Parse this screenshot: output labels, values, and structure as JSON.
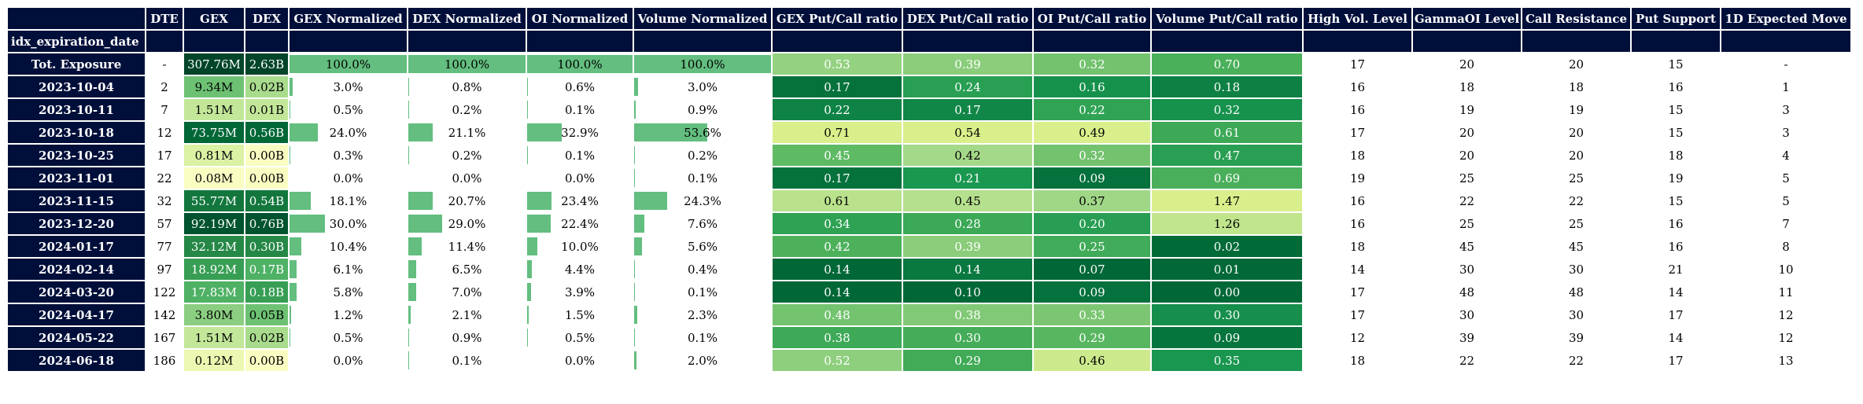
{
  "index_name": "idx_expiration_date",
  "columns": [
    "DTE",
    "GEX",
    "DEX",
    "GEX Normalized",
    "DEX Normalized",
    "OI Normalized",
    "Volume Normalized",
    "GEX Put/Call ratio",
    "DEX Put/Call ratio",
    "OI Put/Call ratio",
    "Volume Put/Call ratio",
    "High Vol. Level",
    "GammaOI Level",
    "Call Resistance",
    "Put Support",
    "1D Expected Move"
  ],
  "rows": [
    {
      "label": "Tot. Exposure",
      "dte": "-",
      "gex": "307.76M",
      "dex": "2.63B",
      "gex_n": "100.0%",
      "dex_n": "100.0%",
      "oi_n": "100.0%",
      "vol_n": "100.0%",
      "gex_pc": "0.53",
      "dex_pc": "0.39",
      "oi_pc": "0.32",
      "vol_pc": "0.70",
      "hvl": "17",
      "goi": "20",
      "cr": "20",
      "ps": "15",
      "em": "-"
    },
    {
      "label": "2023-10-04",
      "dte": "2",
      "gex": "9.34M",
      "dex": "0.02B",
      "gex_n": "3.0%",
      "dex_n": "0.8%",
      "oi_n": "0.6%",
      "vol_n": "3.0%",
      "gex_pc": "0.17",
      "dex_pc": "0.24",
      "oi_pc": "0.16",
      "vol_pc": "0.18",
      "hvl": "16",
      "goi": "18",
      "cr": "18",
      "ps": "16",
      "em": "1"
    },
    {
      "label": "2023-10-11",
      "dte": "7",
      "gex": "1.51M",
      "dex": "0.01B",
      "gex_n": "0.5%",
      "dex_n": "0.2%",
      "oi_n": "0.1%",
      "vol_n": "0.9%",
      "gex_pc": "0.22",
      "dex_pc": "0.17",
      "oi_pc": "0.22",
      "vol_pc": "0.32",
      "hvl": "16",
      "goi": "19",
      "cr": "19",
      "ps": "15",
      "em": "3"
    },
    {
      "label": "2023-10-18",
      "dte": "12",
      "gex": "73.75M",
      "dex": "0.56B",
      "gex_n": "24.0%",
      "dex_n": "21.1%",
      "oi_n": "32.9%",
      "vol_n": "53.6%",
      "gex_pc": "0.71",
      "dex_pc": "0.54",
      "oi_pc": "0.49",
      "vol_pc": "0.61",
      "hvl": "17",
      "goi": "20",
      "cr": "20",
      "ps": "15",
      "em": "3"
    },
    {
      "label": "2023-10-25",
      "dte": "17",
      "gex": "0.81M",
      "dex": "0.00B",
      "gex_n": "0.3%",
      "dex_n": "0.2%",
      "oi_n": "0.1%",
      "vol_n": "0.2%",
      "gex_pc": "0.45",
      "dex_pc": "0.42",
      "oi_pc": "0.32",
      "vol_pc": "0.47",
      "hvl": "18",
      "goi": "20",
      "cr": "20",
      "ps": "18",
      "em": "4"
    },
    {
      "label": "2023-11-01",
      "dte": "22",
      "gex": "0.08M",
      "dex": "0.00B",
      "gex_n": "0.0%",
      "dex_n": "0.0%",
      "oi_n": "0.0%",
      "vol_n": "0.1%",
      "gex_pc": "0.17",
      "dex_pc": "0.21",
      "oi_pc": "0.09",
      "vol_pc": "0.69",
      "hvl": "19",
      "goi": "25",
      "cr": "25",
      "ps": "19",
      "em": "5"
    },
    {
      "label": "2023-11-15",
      "dte": "32",
      "gex": "55.77M",
      "dex": "0.54B",
      "gex_n": "18.1%",
      "dex_n": "20.7%",
      "oi_n": "23.4%",
      "vol_n": "24.3%",
      "gex_pc": "0.61",
      "dex_pc": "0.45",
      "oi_pc": "0.37",
      "vol_pc": "1.47",
      "hvl": "16",
      "goi": "22",
      "cr": "22",
      "ps": "15",
      "em": "5"
    },
    {
      "label": "2023-12-20",
      "dte": "57",
      "gex": "92.19M",
      "dex": "0.76B",
      "gex_n": "30.0%",
      "dex_n": "29.0%",
      "oi_n": "22.4%",
      "vol_n": "7.6%",
      "gex_pc": "0.34",
      "dex_pc": "0.28",
      "oi_pc": "0.20",
      "vol_pc": "1.26",
      "hvl": "16",
      "goi": "25",
      "cr": "25",
      "ps": "16",
      "em": "7"
    },
    {
      "label": "2024-01-17",
      "dte": "77",
      "gex": "32.12M",
      "dex": "0.30B",
      "gex_n": "10.4%",
      "dex_n": "11.4%",
      "oi_n": "10.0%",
      "vol_n": "5.6%",
      "gex_pc": "0.42",
      "dex_pc": "0.39",
      "oi_pc": "0.25",
      "vol_pc": "0.02",
      "hvl": "18",
      "goi": "45",
      "cr": "45",
      "ps": "16",
      "em": "8"
    },
    {
      "label": "2024-02-14",
      "dte": "97",
      "gex": "18.92M",
      "dex": "0.17B",
      "gex_n": "6.1%",
      "dex_n": "6.5%",
      "oi_n": "4.4%",
      "vol_n": "0.4%",
      "gex_pc": "0.14",
      "dex_pc": "0.14",
      "oi_pc": "0.07",
      "vol_pc": "0.01",
      "hvl": "14",
      "goi": "30",
      "cr": "30",
      "ps": "21",
      "em": "10"
    },
    {
      "label": "2024-03-20",
      "dte": "122",
      "gex": "17.83M",
      "dex": "0.18B",
      "gex_n": "5.8%",
      "dex_n": "7.0%",
      "oi_n": "3.9%",
      "vol_n": "0.1%",
      "gex_pc": "0.14",
      "dex_pc": "0.10",
      "oi_pc": "0.09",
      "vol_pc": "0.00",
      "hvl": "17",
      "goi": "48",
      "cr": "48",
      "ps": "14",
      "em": "11"
    },
    {
      "label": "2024-04-17",
      "dte": "142",
      "gex": "3.80M",
      "dex": "0.05B",
      "gex_n": "1.2%",
      "dex_n": "2.1%",
      "oi_n": "1.5%",
      "vol_n": "2.3%",
      "gex_pc": "0.48",
      "dex_pc": "0.38",
      "oi_pc": "0.33",
      "vol_pc": "0.30",
      "hvl": "17",
      "goi": "30",
      "cr": "30",
      "ps": "17",
      "em": "12"
    },
    {
      "label": "2024-05-22",
      "dte": "167",
      "gex": "1.51M",
      "dex": "0.02B",
      "gex_n": "0.5%",
      "dex_n": "0.9%",
      "oi_n": "0.5%",
      "vol_n": "0.1%",
      "gex_pc": "0.38",
      "dex_pc": "0.30",
      "oi_pc": "0.29",
      "vol_pc": "0.09",
      "hvl": "12",
      "goi": "39",
      "cr": "39",
      "ps": "14",
      "em": "12"
    },
    {
      "label": "2024-06-18",
      "dte": "186",
      "gex": "0.12M",
      "dex": "0.00B",
      "gex_n": "0.0%",
      "dex_n": "0.1%",
      "oi_n": "0.0%",
      "vol_n": "2.0%",
      "gex_pc": "0.52",
      "dex_pc": "0.29",
      "oi_pc": "0.46",
      "vol_pc": "0.35",
      "hvl": "18",
      "goi": "22",
      "cr": "22",
      "ps": "17",
      "em": "13"
    }
  ]
}
